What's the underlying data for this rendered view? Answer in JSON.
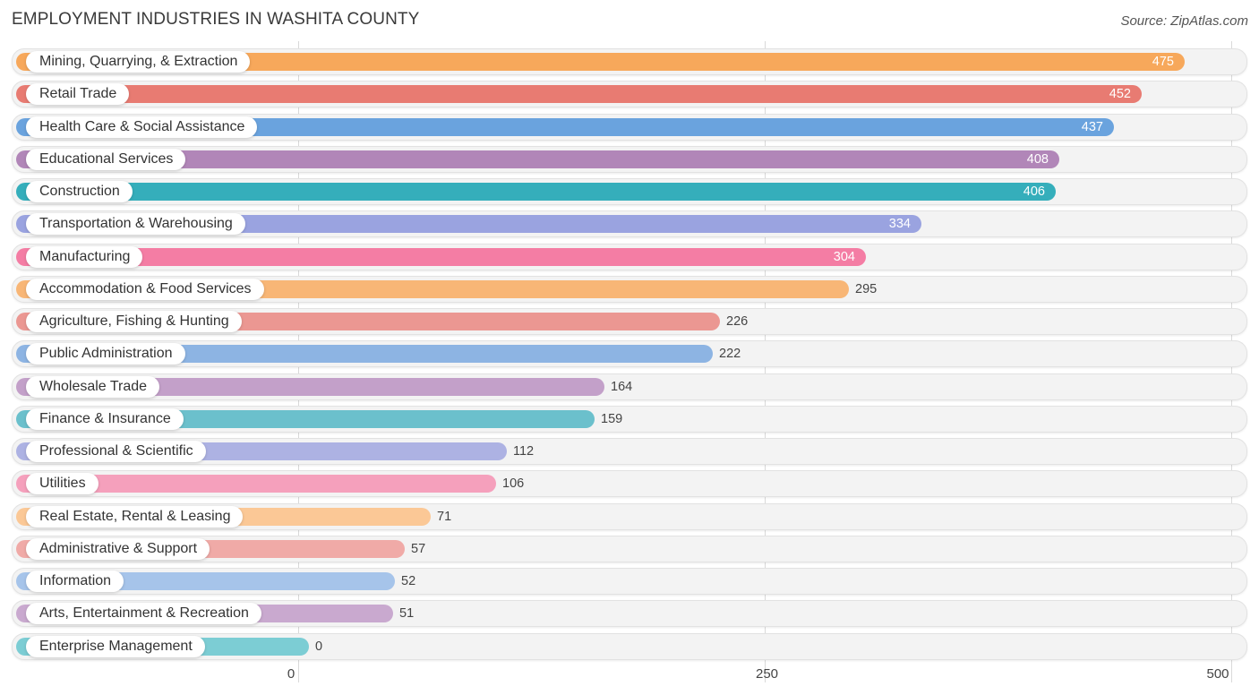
{
  "title": "EMPLOYMENT INDUSTRIES IN WASHITA COUNTY",
  "source": "Source: ZipAtlas.com",
  "chart_data": {
    "type": "bar",
    "orientation": "horizontal",
    "title": "EMPLOYMENT INDUSTRIES IN WASHITA COUNTY",
    "xlim": [
      0,
      500
    ],
    "ticks": [
      0,
      250,
      500
    ],
    "tick_labels": [
      "0",
      "250",
      "500"
    ],
    "grid": true,
    "categories": [
      "Mining, Quarrying, & Extraction",
      "Retail Trade",
      "Health Care & Social Assistance",
      "Educational Services",
      "Construction",
      "Transportation & Warehousing",
      "Manufacturing",
      "Accommodation & Food Services",
      "Agriculture, Fishing & Hunting",
      "Public Administration",
      "Wholesale Trade",
      "Finance & Insurance",
      "Professional & Scientific",
      "Utilities",
      "Real Estate, Rental & Leasing",
      "Administrative & Support",
      "Information",
      "Arts, Entertainment & Recreation",
      "Enterprise Management"
    ],
    "values": [
      475,
      452,
      437,
      408,
      406,
      334,
      304,
      295,
      226,
      222,
      164,
      159,
      112,
      106,
      71,
      57,
      52,
      51,
      0
    ],
    "colors": [
      "#f7a85b",
      "#e87b72",
      "#6aa3de",
      "#b186b8",
      "#35aebb",
      "#9aa3e0",
      "#f47da4",
      "#f8b676",
      "#eb9792",
      "#8db4e3",
      "#c3a0c9",
      "#6bc0cc",
      "#adb2e3",
      "#f5a0bc",
      "#fbc896",
      "#f0aaa7",
      "#a6c4ea",
      "#c9a9cf",
      "#7ccdd4"
    ]
  }
}
